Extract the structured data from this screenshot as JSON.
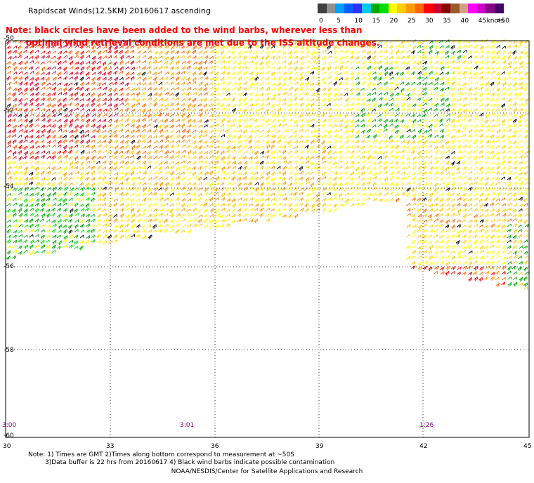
{
  "header": {
    "title": "Rapidscat Winds(12.5KM) 20160617 ascending"
  },
  "color_scale": {
    "units_label": "knots",
    "bins": [
      {
        "label": "0",
        "color": "#404040"
      },
      {
        "label": "",
        "color": "#909090"
      },
      {
        "label": "5",
        "color": "#00a0ff"
      },
      {
        "label": "",
        "color": "#0060ff"
      },
      {
        "label": "10",
        "color": "#3030ff"
      },
      {
        "label": "",
        "color": "#00c8e8"
      },
      {
        "label": "15",
        "color": "#00aa00"
      },
      {
        "label": "",
        "color": "#00dd00"
      },
      {
        "label": "20",
        "color": "#ffff00"
      },
      {
        "label": "",
        "color": "#ffcc00"
      },
      {
        "label": "25",
        "color": "#ff9900"
      },
      {
        "label": "",
        "color": "#ff6600"
      },
      {
        "label": "30",
        "color": "#ff0000"
      },
      {
        "label": "",
        "color": "#cc0033"
      },
      {
        "label": "35",
        "color": "#880000"
      },
      {
        "label": "",
        "color": "#9a5a2a"
      },
      {
        "label": "40",
        "color": "#d0a080"
      },
      {
        "label": "",
        "color": "#ff00ff"
      },
      {
        "label": "45",
        "color": "#cc00cc"
      },
      {
        "label": "",
        "color": "#880088"
      },
      {
        "label": ">50",
        "color": "#440066"
      }
    ]
  },
  "contamination_note": {
    "line1": "Note: black circles have been added to the wind barbs, wherever less than",
    "line2": "optimal wind retrieval conditions are met due to the ISS altitude changes."
  },
  "map": {
    "lat_labels": [
      "-50",
      "-52",
      "-54",
      "-56",
      "-58",
      "-60"
    ],
    "lon_labels": [
      "30",
      "33",
      "36",
      "39",
      "42",
      "45"
    ],
    "time_labels": [
      "3:00",
      "3:01",
      "1:26"
    ]
  },
  "footnotes": {
    "line1": "Note: 1) Times are GMT 2)Times along bottom correspond to measurement at ~50S",
    "line2": "3)Data buffer is 22 hrs from 20160617 4) Black wind barbs indicate possible contamination"
  },
  "credit": "NOAA/NESDIS/Center for Satellite Applications and Research"
}
